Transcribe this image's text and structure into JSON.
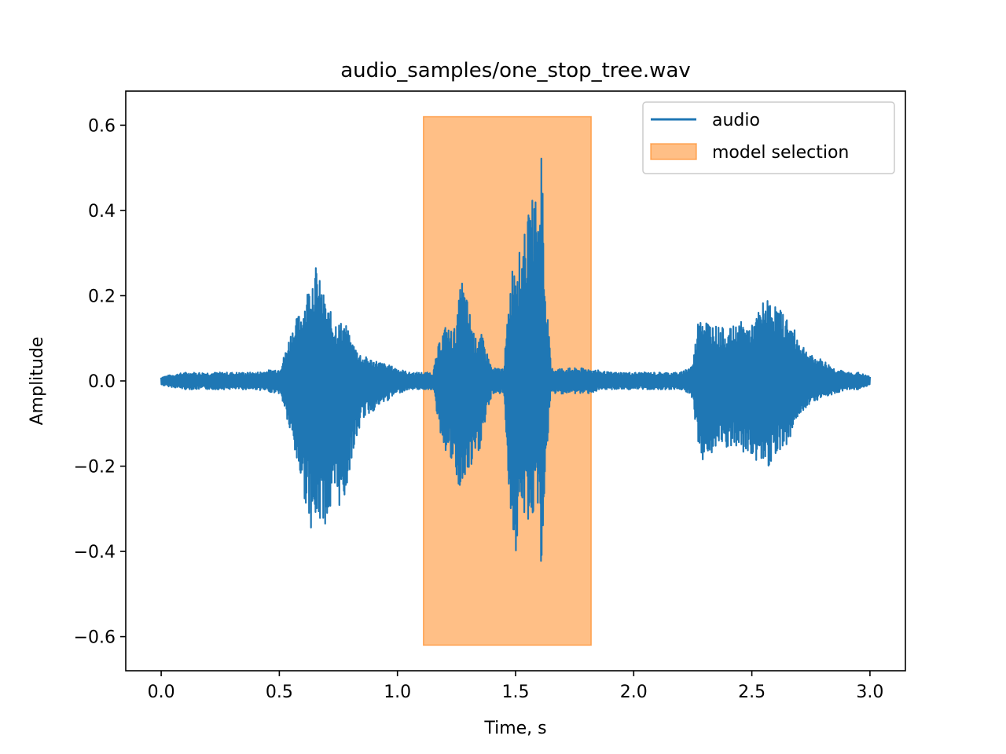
{
  "chart_data": {
    "type": "line",
    "title": "audio_samples/one_stop_tree.wav",
    "xlabel": "Time, s",
    "ylabel": "Amplitude",
    "xlim": [
      -0.15,
      3.15
    ],
    "ylim": [
      -0.68,
      0.68
    ],
    "xticks": [
      0.0,
      0.5,
      1.0,
      1.5,
      2.0,
      2.5,
      3.0
    ],
    "xtick_labels": [
      "0.0",
      "0.5",
      "1.0",
      "1.5",
      "2.0",
      "2.5",
      "3.0"
    ],
    "yticks": [
      0.6,
      0.4,
      0.2,
      0.0,
      -0.2,
      -0.4,
      -0.6
    ],
    "ytick_labels": [
      "0.6",
      "0.4",
      "0.2",
      "0.0",
      "−0.2",
      "−0.4",
      "−0.6"
    ],
    "grid": false,
    "legend_position": "top-right",
    "legend": [
      "audio",
      "model selection"
    ],
    "series": [
      {
        "name": "audio",
        "color": "#1f77b4",
        "envelope": {
          "t": [
            0.0,
            0.1,
            0.2,
            0.3,
            0.4,
            0.5,
            0.52,
            0.55,
            0.6,
            0.63,
            0.65,
            0.68,
            0.7,
            0.72,
            0.75,
            0.78,
            0.8,
            0.85,
            0.9,
            0.95,
            1.0,
            1.05,
            1.1,
            1.15,
            1.18,
            1.2,
            1.23,
            1.25,
            1.27,
            1.3,
            1.33,
            1.35,
            1.4,
            1.45,
            1.48,
            1.5,
            1.52,
            1.55,
            1.58,
            1.6,
            1.61,
            1.62,
            1.65,
            1.7,
            1.75,
            1.8,
            1.9,
            2.0,
            2.1,
            2.2,
            2.25,
            2.28,
            2.3,
            2.35,
            2.4,
            2.45,
            2.5,
            2.55,
            2.58,
            2.6,
            2.65,
            2.7,
            2.75,
            2.8,
            2.85,
            2.9,
            2.95,
            3.0
          ],
          "max": [
            0.01,
            0.02,
            0.02,
            0.02,
            0.02,
            0.03,
            0.06,
            0.12,
            0.18,
            0.24,
            0.28,
            0.22,
            0.18,
            0.16,
            0.14,
            0.14,
            0.1,
            0.06,
            0.05,
            0.04,
            0.03,
            0.02,
            0.02,
            0.02,
            0.1,
            0.13,
            0.12,
            0.13,
            0.25,
            0.18,
            0.1,
            0.12,
            0.03,
            0.03,
            0.25,
            0.32,
            0.3,
            0.38,
            0.45,
            0.39,
            0.62,
            0.3,
            0.03,
            0.03,
            0.03,
            0.03,
            0.02,
            0.02,
            0.02,
            0.02,
            0.04,
            0.18,
            0.15,
            0.13,
            0.12,
            0.14,
            0.13,
            0.19,
            0.19,
            0.18,
            0.15,
            0.1,
            0.06,
            0.05,
            0.03,
            0.02,
            0.02,
            0.01
          ],
          "min": [
            -0.01,
            -0.02,
            -0.02,
            -0.02,
            -0.02,
            -0.03,
            -0.06,
            -0.14,
            -0.26,
            -0.34,
            -0.36,
            -0.33,
            -0.34,
            -0.32,
            -0.3,
            -0.28,
            -0.2,
            -0.09,
            -0.07,
            -0.05,
            -0.03,
            -0.02,
            -0.02,
            -0.02,
            -0.12,
            -0.16,
            -0.2,
            -0.24,
            -0.27,
            -0.22,
            -0.2,
            -0.16,
            -0.03,
            -0.03,
            -0.33,
            -0.42,
            -0.32,
            -0.33,
            -0.33,
            -0.28,
            -0.56,
            -0.28,
            -0.03,
            -0.03,
            -0.03,
            -0.03,
            -0.02,
            -0.02,
            -0.02,
            -0.02,
            -0.04,
            -0.2,
            -0.18,
            -0.17,
            -0.16,
            -0.17,
            -0.18,
            -0.2,
            -0.2,
            -0.17,
            -0.15,
            -0.08,
            -0.05,
            -0.04,
            -0.03,
            -0.02,
            -0.02,
            -0.01
          ]
        }
      },
      {
        "name": "model selection",
        "type": "span",
        "x_start": 1.11,
        "x_end": 1.82,
        "y_min": -0.62,
        "y_max": 0.62,
        "color": "#ff7f0e"
      }
    ]
  }
}
